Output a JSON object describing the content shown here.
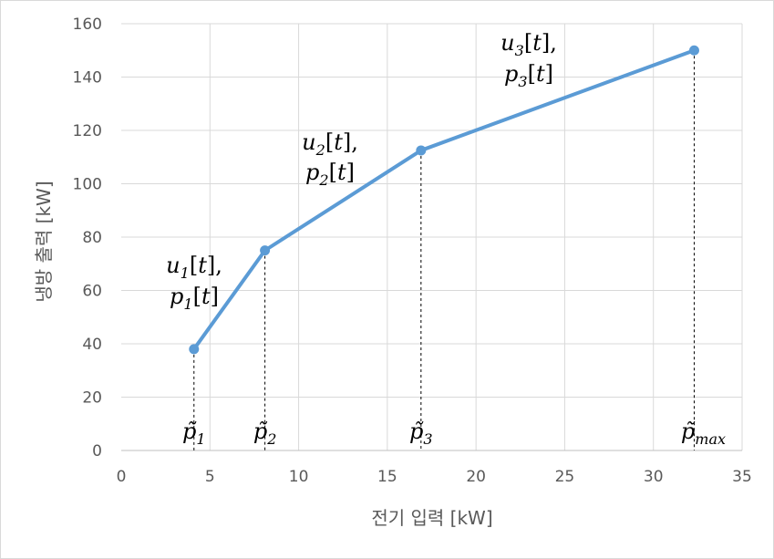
{
  "chart_data": {
    "type": "line",
    "xlabel": "전기 입력 [kW]",
    "ylabel": "냉방 출력 [kW]",
    "xlim": [
      0,
      35
    ],
    "ylim": [
      0,
      160
    ],
    "x_ticks": [
      "0",
      "5",
      "10",
      "15",
      "20",
      "25",
      "30",
      "35"
    ],
    "y_ticks": [
      "0",
      "20",
      "40",
      "60",
      "80",
      "100",
      "120",
      "140",
      "160"
    ],
    "grid": true,
    "series": [
      {
        "x": [
          4.1,
          8.1,
          16.9,
          32.3
        ],
        "y": [
          38,
          75,
          112.5,
          150
        ]
      }
    ],
    "line_color": "#5b9bd5",
    "grid_color": "#d9d9d9",
    "segment_labels": [
      {
        "u": "u",
        "p": "p",
        "index": "1",
        "suffix": "[t]"
      },
      {
        "u": "u",
        "p": "p",
        "index": "2",
        "suffix": "[t]"
      },
      {
        "u": "u",
        "p": "p",
        "index": "3",
        "suffix": "[t]"
      }
    ],
    "point_labels": [
      {
        "symbol": "p̃",
        "sub": "1"
      },
      {
        "symbol": "p̃",
        "sub": "2"
      },
      {
        "symbol": "p̃",
        "sub": "3"
      },
      {
        "symbol": "p̃",
        "sub": "max"
      }
    ]
  }
}
